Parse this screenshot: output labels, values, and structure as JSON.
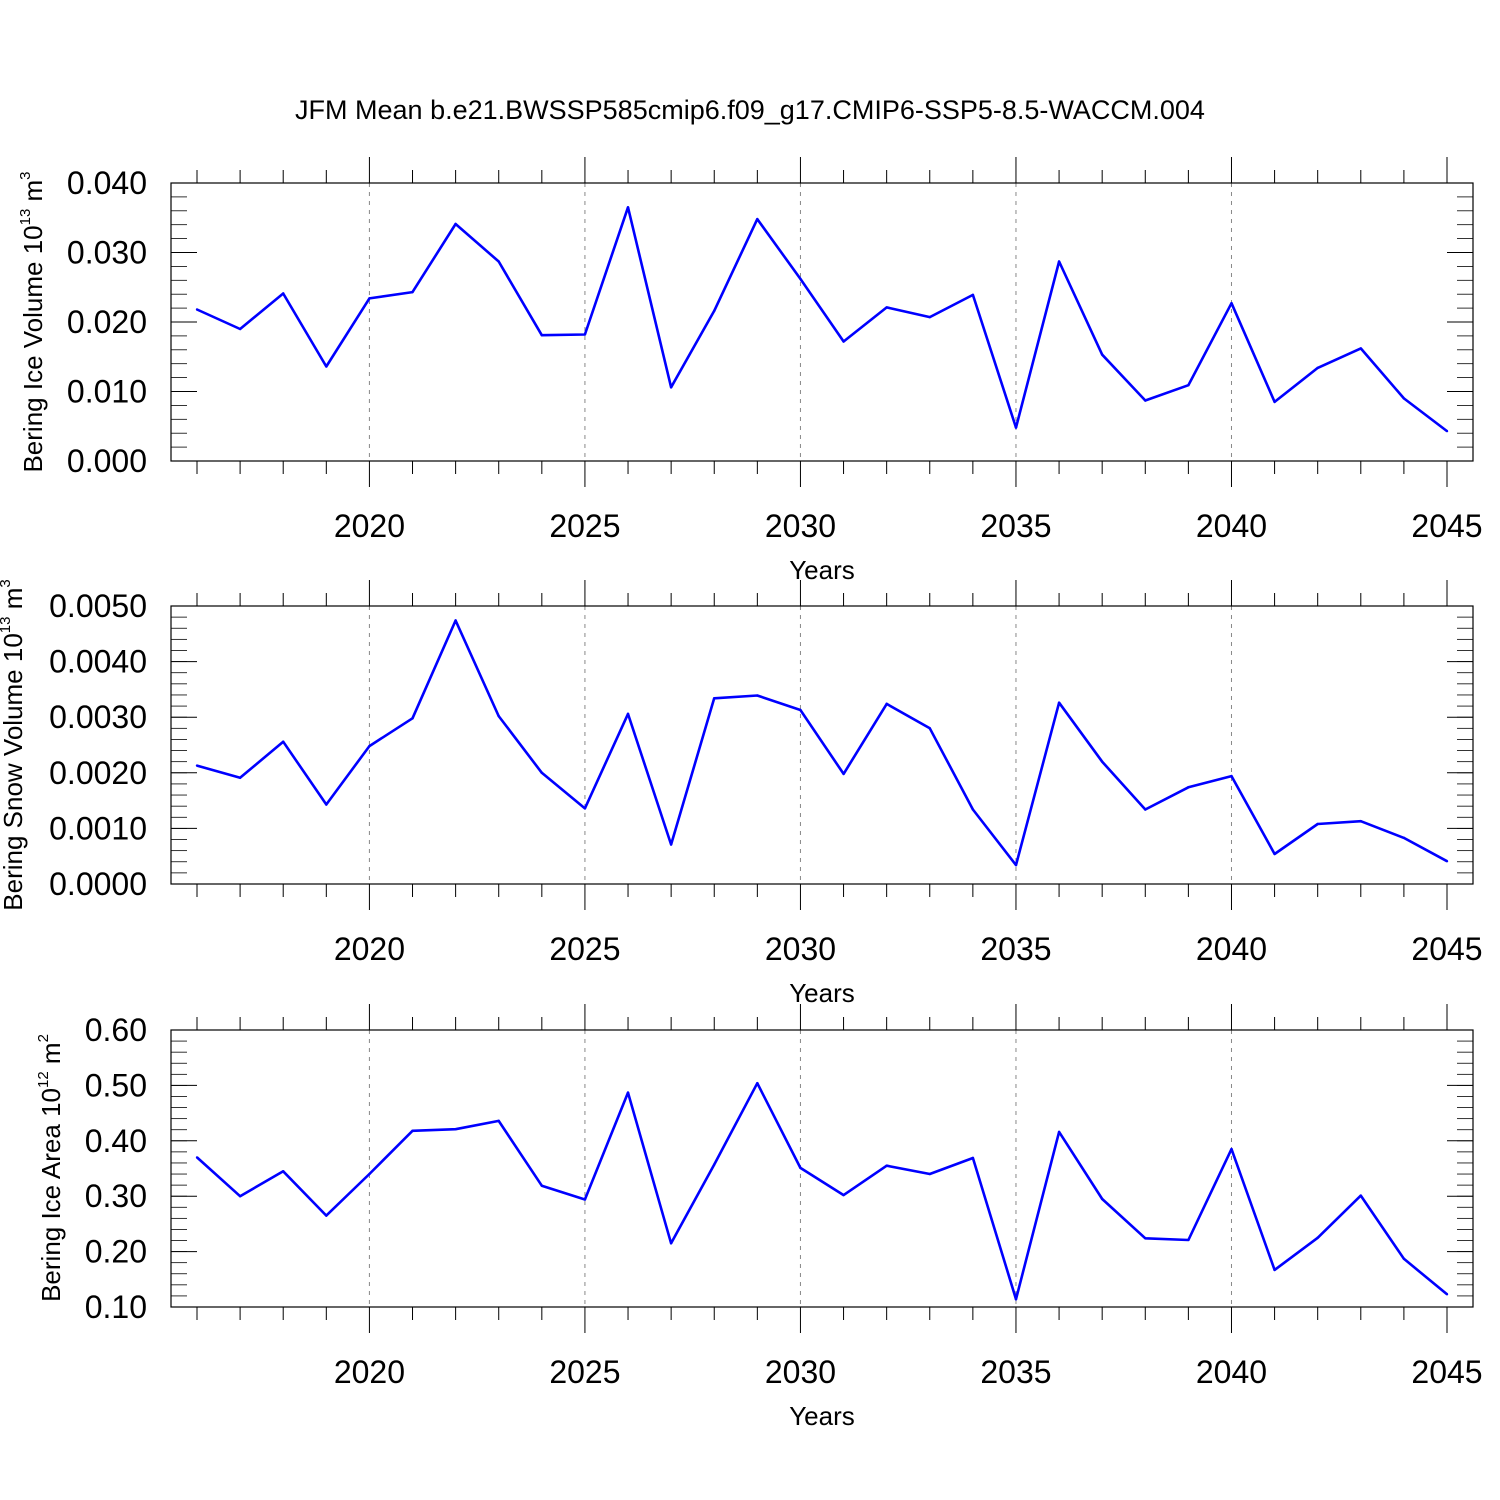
{
  "title": "JFM Mean b.e21.BWSSP585cmip6.f09_g17.CMIP6-SSP5-8.5-WACCM.004",
  "colors": {
    "line": "#0000ff",
    "frame": "#000000",
    "grid": "#888888"
  },
  "chart_data": [
    {
      "type": "line",
      "xlabel": "Years",
      "ylabel": {
        "main": "Bering Ice Volume 10",
        "exp": "13",
        "unit": " m",
        "unit_exp": "3"
      },
      "xlim": [
        2016,
        2045
      ],
      "ylim": [
        0.0,
        0.04
      ],
      "grid": "vertical dashed at major x ticks",
      "x_ticks": [
        2020,
        2025,
        2030,
        2035,
        2040,
        2045
      ],
      "x_tick_labels": [
        "2020",
        "2025",
        "2030",
        "2035",
        "2040",
        "2045"
      ],
      "y_ticks": [
        0.0,
        0.01,
        0.02,
        0.03,
        0.04
      ],
      "y_tick_labels": [
        "0.000",
        "0.010",
        "0.020",
        "0.030",
        "0.040"
      ],
      "y_minor_step": 0.002,
      "x": [
        2016,
        2017,
        2018,
        2019,
        2020,
        2021,
        2022,
        2023,
        2024,
        2025,
        2026,
        2027,
        2028,
        2029,
        2030,
        2031,
        2032,
        2033,
        2034,
        2035,
        2036,
        2037,
        2038,
        2039,
        2040,
        2041,
        2042,
        2043,
        2044,
        2045
      ],
      "series": [
        {
          "values": [
            0.0218,
            0.019,
            0.0241,
            0.0136,
            0.0234,
            0.0243,
            0.0341,
            0.0287,
            0.0181,
            0.0182,
            0.0365,
            0.0106,
            0.0216,
            0.0348,
            0.0262,
            0.0172,
            0.0221,
            0.0207,
            0.0239,
            0.0048,
            0.0287,
            0.0153,
            0.0087,
            0.0109,
            0.0227,
            0.0085,
            0.0134,
            0.0162,
            0.009,
            0.0043
          ]
        }
      ]
    },
    {
      "type": "line",
      "xlabel": "Years",
      "ylabel": {
        "main": "Bering Snow Volume 10",
        "exp": "13",
        "unit": " m",
        "unit_exp": "3"
      },
      "xlim": [
        2016,
        2045
      ],
      "ylim": [
        0.0,
        0.005
      ],
      "grid": "vertical dashed at major x ticks",
      "x_ticks": [
        2020,
        2025,
        2030,
        2035,
        2040,
        2045
      ],
      "x_tick_labels": [
        "2020",
        "2025",
        "2030",
        "2035",
        "2040",
        "2045"
      ],
      "y_ticks": [
        0.0,
        0.001,
        0.002,
        0.003,
        0.004,
        0.005
      ],
      "y_tick_labels": [
        "0.0000",
        "0.0010",
        "0.0020",
        "0.0030",
        "0.0040",
        "0.0050"
      ],
      "y_minor_step": 0.0002,
      "x": [
        2016,
        2017,
        2018,
        2019,
        2020,
        2021,
        2022,
        2023,
        2024,
        2025,
        2026,
        2027,
        2028,
        2029,
        2030,
        2031,
        2032,
        2033,
        2034,
        2035,
        2036,
        2037,
        2038,
        2039,
        2040,
        2041,
        2042,
        2043,
        2044,
        2045
      ],
      "series": [
        {
          "values": [
            0.00213,
            0.00191,
            0.00256,
            0.00143,
            0.00248,
            0.00298,
            0.00474,
            0.00302,
            0.002,
            0.00136,
            0.00306,
            0.00071,
            0.00334,
            0.00339,
            0.00313,
            0.00198,
            0.00324,
            0.0028,
            0.00134,
            0.00034,
            0.00326,
            0.0022,
            0.00134,
            0.00174,
            0.00194,
            0.00054,
            0.00108,
            0.00113,
            0.00083,
            0.00041
          ]
        }
      ]
    },
    {
      "type": "line",
      "xlabel": "Years",
      "ylabel": {
        "main": "Bering Ice Area 10",
        "exp": "12",
        "unit": " m",
        "unit_exp": "2"
      },
      "xlim": [
        2016,
        2045
      ],
      "ylim": [
        0.1,
        0.6
      ],
      "grid": "vertical dashed at major x ticks",
      "x_ticks": [
        2020,
        2025,
        2030,
        2035,
        2040,
        2045
      ],
      "x_tick_labels": [
        "2020",
        "2025",
        "2030",
        "2035",
        "2040",
        "2045"
      ],
      "y_ticks": [
        0.1,
        0.2,
        0.3,
        0.4,
        0.5,
        0.6
      ],
      "y_tick_labels": [
        "0.10",
        "0.20",
        "0.30",
        "0.40",
        "0.50",
        "0.60"
      ],
      "y_minor_step": 0.02,
      "x": [
        2016,
        2017,
        2018,
        2019,
        2020,
        2021,
        2022,
        2023,
        2024,
        2025,
        2026,
        2027,
        2028,
        2029,
        2030,
        2031,
        2032,
        2033,
        2034,
        2035,
        2036,
        2037,
        2038,
        2039,
        2040,
        2041,
        2042,
        2043,
        2044,
        2045
      ],
      "series": [
        {
          "values": [
            0.37,
            0.3,
            0.345,
            0.265,
            0.34,
            0.418,
            0.421,
            0.436,
            0.319,
            0.294,
            0.487,
            0.215,
            0.357,
            0.504,
            0.351,
            0.302,
            0.355,
            0.34,
            0.369,
            0.114,
            0.416,
            0.295,
            0.224,
            0.221,
            0.385,
            0.167,
            0.225,
            0.301,
            0.187,
            0.123
          ]
        }
      ]
    }
  ]
}
